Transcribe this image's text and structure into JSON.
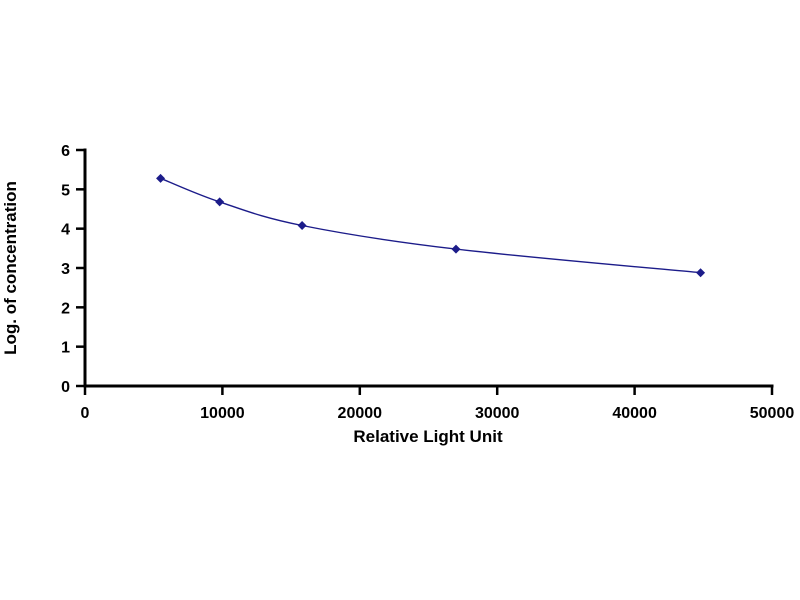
{
  "chart_data": {
    "type": "line",
    "title": "",
    "xlabel": "Relative Light Unit",
    "ylabel": "Log. of concentration",
    "x": [
      5500,
      9800,
      15800,
      27000,
      44800
    ],
    "y": [
      5.28,
      4.68,
      4.08,
      3.48,
      2.88
    ],
    "xlim": [
      0,
      50000
    ],
    "ylim": [
      0,
      6
    ],
    "xticks": [
      0,
      10000,
      20000,
      30000,
      40000,
      50000
    ],
    "yticks": [
      0,
      1,
      2,
      3,
      4,
      5,
      6
    ],
    "grid": false,
    "legend_position": "none",
    "marker": "diamond",
    "line_color": "#1c1c8a",
    "marker_color": "#1c1c8a",
    "axis_color": "#000000",
    "background_color": "#ffffff"
  }
}
